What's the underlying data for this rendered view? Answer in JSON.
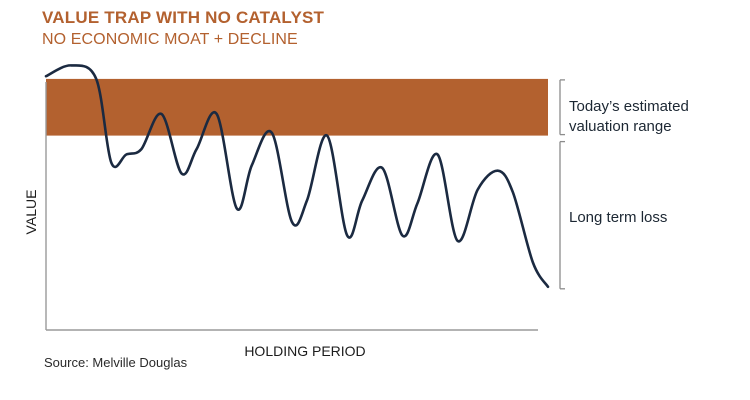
{
  "header": {
    "title": "VALUE TRAP WITH NO CATALYST",
    "subtitle": "NO ECONOMIC MOAT + DECLINE"
  },
  "colors": {
    "accent": "#b3612f",
    "line": "#1b2a41",
    "axis": "#9a9a9a",
    "bracket": "#8c8c8c"
  },
  "source": "Source: Melville Douglas",
  "chart_data": {
    "type": "line",
    "title": "VALUE TRAP WITH NO CATALYST",
    "subtitle": "NO ECONOMIC MOAT + DECLINE",
    "xlabel": "HOLDING PERIOD",
    "ylabel": "VALUE",
    "grid": false,
    "xlim": [
      0,
      100
    ],
    "ylim": [
      0,
      100
    ],
    "series": [
      {
        "x": [
          0,
          5,
          10,
          13,
          16,
          19,
          23,
          27,
          30,
          34,
          38,
          41,
          45,
          49,
          52,
          56,
          60,
          63,
          67,
          71,
          74,
          78,
          82,
          86,
          90,
          93,
          97,
          100
        ],
        "values": [
          94,
          98,
          93,
          62,
          65,
          67,
          80,
          58,
          67,
          80,
          45,
          61,
          73,
          40,
          48,
          72,
          35,
          48,
          60,
          35,
          47,
          65,
          33,
          52,
          59,
          51,
          25,
          16
        ]
      }
    ],
    "bands": [
      {
        "from": 72,
        "to": 93,
        "label": "Today’s estimated valuation range"
      }
    ],
    "annotations": [
      {
        "label": "Long term loss",
        "from": 16,
        "to": 72
      }
    ]
  }
}
